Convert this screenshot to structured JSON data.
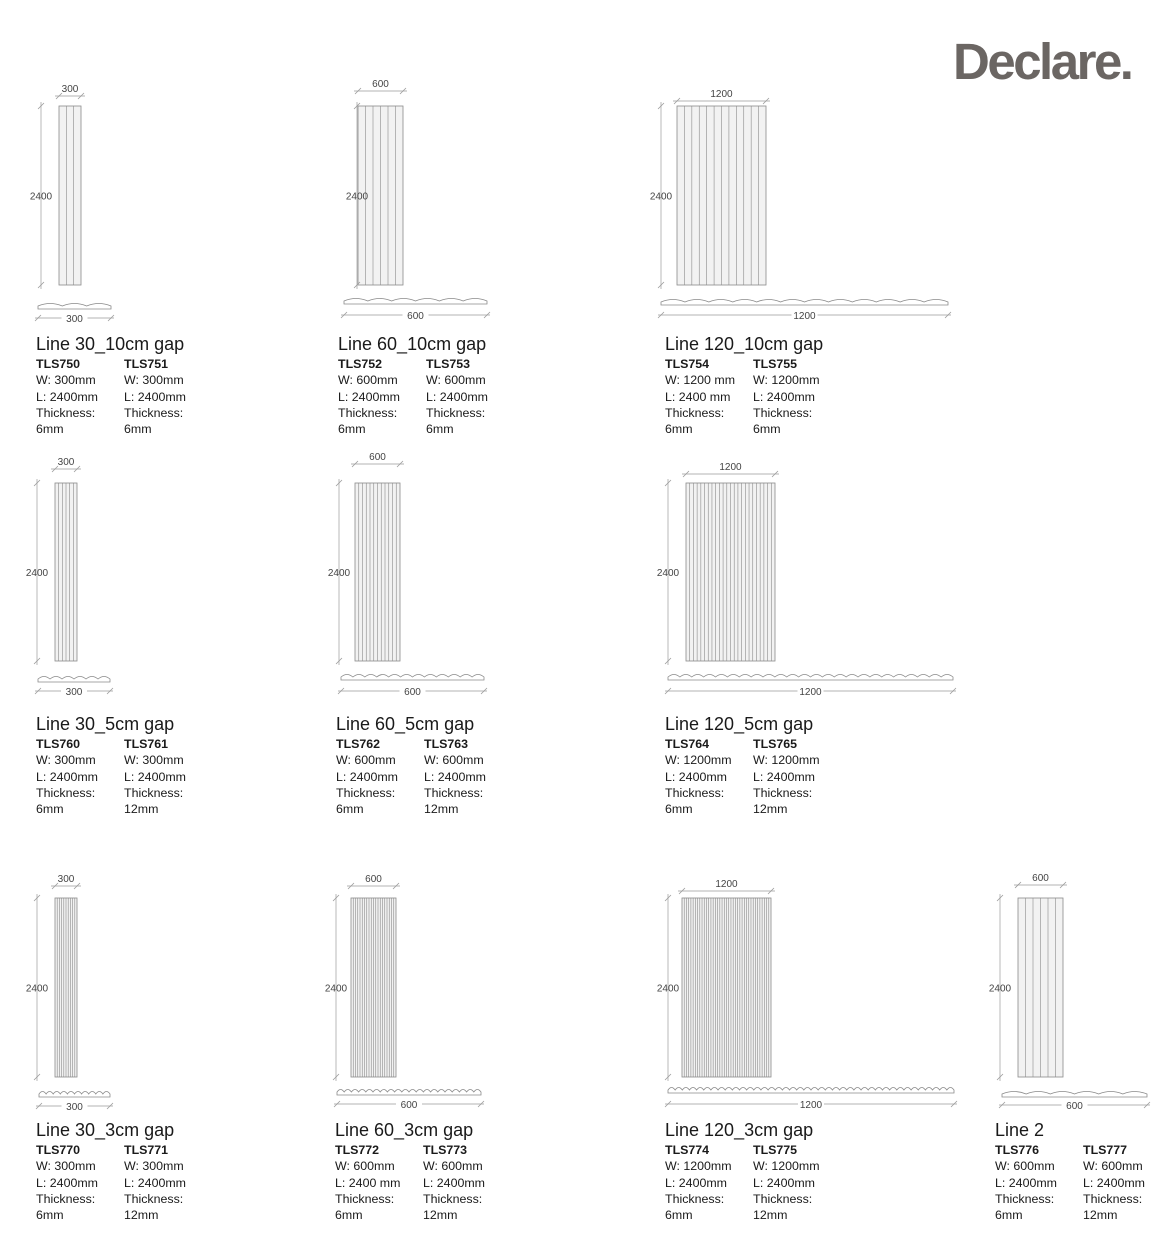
{
  "brand": {
    "logo": "Declare."
  },
  "labels": {
    "width_prefix": "W: ",
    "length_prefix": "L: ",
    "thickness_label": "Thickness:"
  },
  "colors": {
    "panel_fill": "#f2f2f2",
    "panel_stroke": "#8a8a8a",
    "dimension_line": "#9a9a9a",
    "logo": "#6b6663"
  },
  "products": [
    {
      "name": "Line 30_10cm gap",
      "width_dim": "300",
      "height_dim": "2400",
      "profile_dim": "300",
      "flute_gap_cm": 10,
      "variants": [
        {
          "code": "TLS750",
          "w": "300mm",
          "l": "2400mm",
          "t": "6mm"
        },
        {
          "code": "TLS751",
          "w": "300mm",
          "l": "2400mm",
          "t": "6mm"
        }
      ]
    },
    {
      "name": "Line 60_10cm gap",
      "width_dim": "600",
      "height_dim": "2400",
      "profile_dim": "600",
      "flute_gap_cm": 10,
      "variants": [
        {
          "code": "TLS752",
          "w": "600mm",
          "l": "2400mm",
          "t": "6mm"
        },
        {
          "code": "TLS753",
          "w": "600mm",
          "l": "2400mm",
          "t": "6mm"
        }
      ]
    },
    {
      "name": "Line 120_10cm gap",
      "width_dim": "1200",
      "height_dim": "2400",
      "profile_dim": "1200",
      "flute_gap_cm": 10,
      "variants": [
        {
          "code": "TLS754",
          "w": "1200 mm",
          "l": "2400 mm",
          "t": "6mm"
        },
        {
          "code": "TLS755",
          "w": "1200mm",
          "l": "2400mm",
          "t": "6mm"
        }
      ]
    },
    {
      "name": "Line 30_5cm gap",
      "width_dim": "300",
      "height_dim": "2400",
      "profile_dim": "300",
      "flute_gap_cm": 5,
      "variants": [
        {
          "code": "TLS760",
          "w": "300mm",
          "l": "2400mm",
          "t": "6mm"
        },
        {
          "code": "TLS761",
          "w": "300mm",
          "l": "2400mm",
          "t": "12mm"
        }
      ]
    },
    {
      "name": "Line 60_5cm gap",
      "width_dim": "600",
      "height_dim": "2400",
      "profile_dim": "600",
      "flute_gap_cm": 5,
      "variants": [
        {
          "code": "TLS762",
          "w": "600mm",
          "l": "2400mm",
          "t": "6mm"
        },
        {
          "code": "TLS763",
          "w": "600mm",
          "l": "2400mm",
          "t": "12mm"
        }
      ]
    },
    {
      "name": "Line 120_5cm gap",
      "width_dim": "1200",
      "height_dim": "2400",
      "profile_dim": "1200",
      "flute_gap_cm": 5,
      "variants": [
        {
          "code": "TLS764",
          "w": "1200mm",
          "l": "2400mm",
          "t": "6mm"
        },
        {
          "code": "TLS765",
          "w": "1200mm",
          "l": "2400mm",
          "t": "12mm"
        }
      ]
    },
    {
      "name": "Line 30_3cm gap",
      "width_dim": "300",
      "height_dim": "2400",
      "profile_dim": "300",
      "flute_gap_cm": 3,
      "variants": [
        {
          "code": "TLS770",
          "w": "300mm",
          "l": "2400mm",
          "t": "6mm"
        },
        {
          "code": "TLS771",
          "w": "300mm",
          "l": "2400mm",
          "t": "12mm"
        }
      ]
    },
    {
      "name": "Line 60_3cm gap",
      "width_dim": "600",
      "height_dim": "2400",
      "profile_dim": "600",
      "flute_gap_cm": 3,
      "variants": [
        {
          "code": "TLS772",
          "w": "600mm",
          "l": "2400 mm",
          "t": "6mm"
        },
        {
          "code": "TLS773",
          "w": "600mm",
          "l": "2400mm",
          "t": "12mm"
        }
      ]
    },
    {
      "name": "Line 120_3cm gap",
      "width_dim": "1200",
      "height_dim": "2400",
      "profile_dim": "1200",
      "flute_gap_cm": 3,
      "variants": [
        {
          "code": "TLS774",
          "w": "1200mm",
          "l": "2400mm",
          "t": "6mm"
        },
        {
          "code": "TLS775",
          "w": "1200mm",
          "l": "2400mm",
          "t": "12mm"
        }
      ]
    },
    {
      "name": "Line 2",
      "width_dim": "600",
      "height_dim": "2400",
      "profile_dim": "600",
      "flute_gap_cm": 10,
      "variants": [
        {
          "code": "TLS776",
          "w": "600mm",
          "l": "2400mm",
          "t": "6mm"
        },
        {
          "code": "TLS777",
          "w": "600mm",
          "l": "2400mm",
          "t": "12mm"
        }
      ]
    }
  ]
}
